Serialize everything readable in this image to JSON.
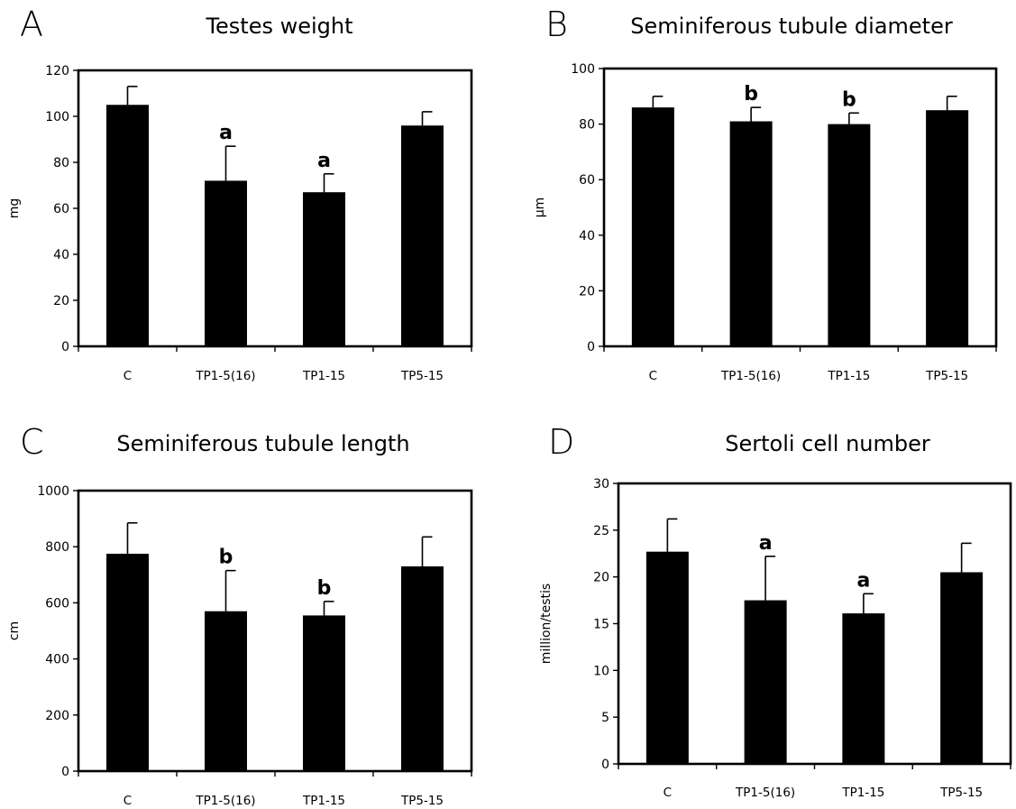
{
  "chart_data": [
    {
      "panel": "A",
      "type": "bar",
      "title": "Testes weight",
      "xlabel": "",
      "ylabel": "mg",
      "ylim": [
        0,
        120
      ],
      "yticks": [
        0,
        20,
        40,
        60,
        80,
        100,
        120
      ],
      "categories": [
        "C",
        "TP1-5(16)",
        "TP1-15",
        "TP5-15"
      ],
      "values": [
        105,
        72,
        67,
        96
      ],
      "errors": [
        8,
        15,
        8,
        6
      ],
      "annotations": [
        "",
        "a",
        "a",
        ""
      ],
      "grid": false,
      "legend": "none"
    },
    {
      "panel": "B",
      "type": "bar",
      "title": "Seminiferous tubule diameter",
      "xlabel": "",
      "ylabel": "μm",
      "ylim": [
        0,
        100
      ],
      "yticks": [
        0,
        20,
        40,
        60,
        80,
        100
      ],
      "categories": [
        "C",
        "TP1-5(16)",
        "TP1-15",
        "TP5-15"
      ],
      "values": [
        86,
        81,
        80,
        85
      ],
      "errors": [
        4,
        5,
        4,
        5
      ],
      "annotations": [
        "",
        "b",
        "b",
        ""
      ],
      "grid": false,
      "legend": "none"
    },
    {
      "panel": "C",
      "type": "bar",
      "title": "Seminiferous tubule length",
      "xlabel": "",
      "ylabel": "cm",
      "ylim": [
        0,
        1000
      ],
      "yticks": [
        0,
        200,
        400,
        600,
        800,
        1000
      ],
      "categories": [
        "C",
        "TP1-5(16)",
        "TP1-15",
        "TP5-15"
      ],
      "values": [
        775,
        570,
        555,
        730
      ],
      "errors": [
        110,
        145,
        50,
        105
      ],
      "annotations": [
        "",
        "b",
        "b",
        ""
      ],
      "grid": false,
      "legend": "none"
    },
    {
      "panel": "D",
      "type": "bar",
      "title": "Sertoli cell number",
      "xlabel": "",
      "ylabel": "million/testis",
      "ylim": [
        0,
        30
      ],
      "yticks": [
        0,
        5,
        10,
        15,
        20,
        25,
        30
      ],
      "categories": [
        "C",
        "TP1-5(16)",
        "TP1-15",
        "TP5-15"
      ],
      "values": [
        22.7,
        17.5,
        16.1,
        20.5
      ],
      "errors": [
        3.5,
        4.7,
        2.1,
        3.1
      ],
      "annotations": [
        "",
        "a",
        "a",
        ""
      ],
      "grid": false,
      "legend": "none"
    }
  ]
}
